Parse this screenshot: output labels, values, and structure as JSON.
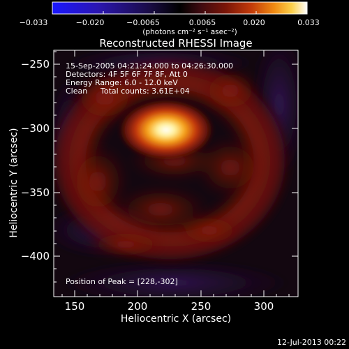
{
  "colorbar": {
    "ticks": [
      "−0.033",
      "−0.020",
      "−0.0065",
      "0.0065",
      "0.020",
      "0.033"
    ],
    "units_label": "(photons cm⁻² s⁻¹ asec⁻²)",
    "stops": [
      "#1a17ff",
      "#2b16b0",
      "#1a0c46",
      "#000000",
      "#3d0a10",
      "#7a1508",
      "#c23a0a",
      "#f08a12",
      "#fcd04a",
      "#ffffff"
    ]
  },
  "title": "Reconstructed RHESSI Image",
  "annotations": {
    "time_range": "15-Sep-2005 04:21:24.000 to 04:26:30.000",
    "detectors": "Detectors: 4F 5F 6F 7F 8F, Att 0",
    "energy": "Energy Range: 6.0 - 12.0 keV",
    "clean": "Clean",
    "counts": "Total counts: 3.61E+04",
    "peak": "Position of Peak = [228,-302]"
  },
  "axes": {
    "xlabel": "Heliocentric X (arcsec)",
    "ylabel": "Heliocentric Y (arcsec)",
    "xticks": [
      "150",
      "200",
      "250",
      "300"
    ],
    "yticks": [
      "−250",
      "−300",
      "−350",
      "−400"
    ],
    "xlim": [
      133,
      325
    ],
    "ylim": [
      -433,
      -239
    ]
  },
  "timestamp": "12-Jul-2013 00:22"
}
